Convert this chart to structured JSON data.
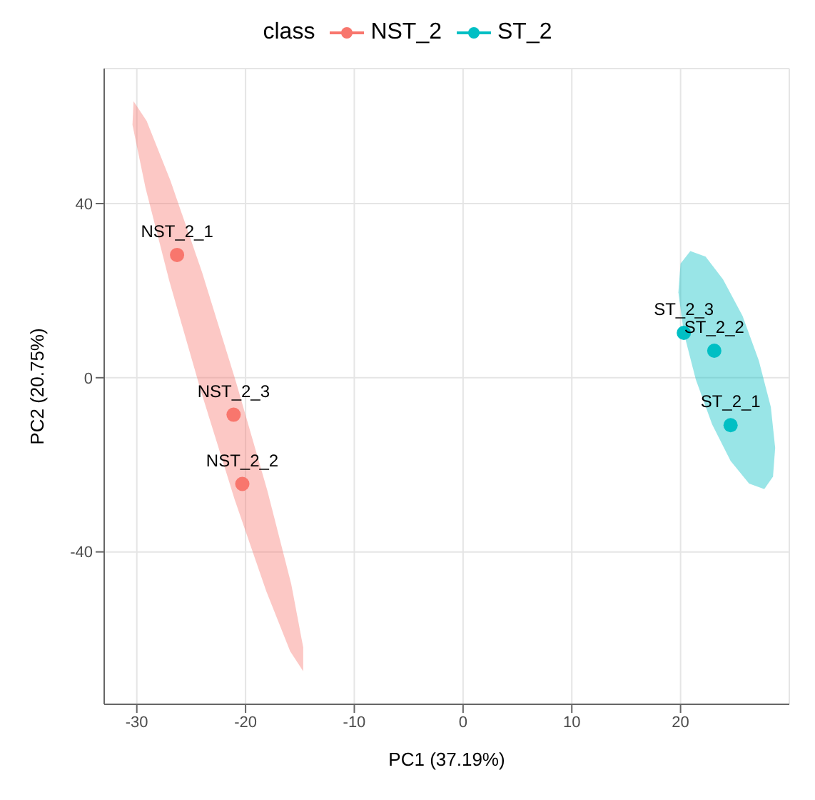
{
  "chart_data": {
    "type": "scatter",
    "xlabel": "PC1 (37.19%)",
    "ylabel": "PC2 (20.75%)",
    "legend_title": "class",
    "legend": "top",
    "grid": true,
    "marker": "circle",
    "xlim": [
      -33,
      30
    ],
    "xticks": [
      -30,
      -20,
      -10,
      0,
      10,
      20
    ],
    "ylim": [
      -75,
      71
    ],
    "yticks": [
      -40,
      0,
      40
    ],
    "series": [
      {
        "type": "area",
        "marker": "none",
        "color": "#f8766d",
        "x": [
          -14.7,
          -14.7,
          -15.8,
          -18.0,
          -20.9,
          -24.0,
          -26.9,
          -29.1,
          -30.3,
          -30.4,
          -29.2,
          -27.0,
          -24.1,
          -21.0,
          -18.1,
          -15.9,
          -14.7
        ],
        "values": [
          -67.4,
          -61.9,
          -47.4,
          -25.9,
          -0.8,
          24.2,
          45.2,
          59.0,
          63.5,
          58.1,
          43.6,
          22.1,
          -3.1,
          -28.0,
          -49.0,
          -62.8,
          -67.4
        ]
      },
      {
        "type": "area",
        "marker": "none",
        "color": "#00bfc4",
        "x": [
          27.7,
          28.5,
          28.7,
          28.3,
          27.2,
          25.7,
          23.9,
          22.3,
          20.9,
          20.0,
          19.8,
          20.3,
          21.4,
          22.9,
          24.6,
          26.3,
          27.7
        ],
        "values": [
          -25.6,
          -22.7,
          -16.1,
          -6.7,
          3.9,
          14.2,
          22.6,
          27.8,
          29.1,
          26.2,
          19.6,
          10.3,
          -0.4,
          -10.7,
          -19.1,
          -24.3,
          -25.6
        ]
      },
      {
        "name": "NST_2",
        "color": "#f8766d",
        "x": [
          -26.3,
          -21.1,
          -20.3
        ],
        "values": [
          28.2,
          -8.5,
          -24.4
        ],
        "value_labels": [
          "NST_2_1",
          "NST_2_3",
          "NST_2_2"
        ]
      },
      {
        "name": "ST_2",
        "color": "#00bfc4",
        "x": [
          20.3,
          23.1,
          24.6
        ],
        "values": [
          10.3,
          6.2,
          -10.9
        ],
        "value_labels": [
          "ST_2_3",
          "ST_2_2",
          "ST_2_1"
        ]
      }
    ]
  }
}
